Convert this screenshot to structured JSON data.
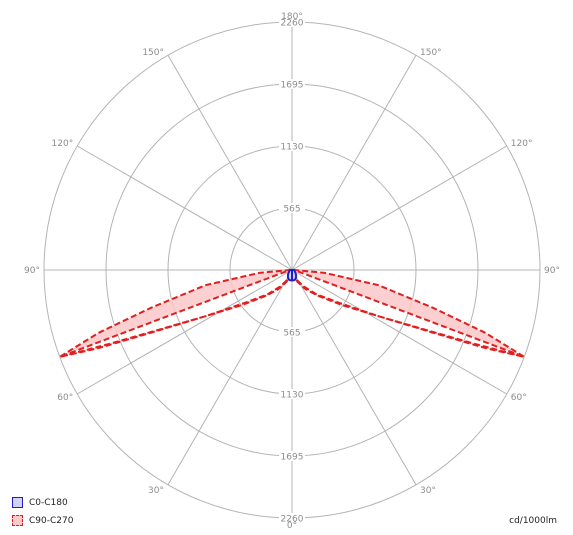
{
  "chart_data": {
    "type": "polar",
    "unit_label": "cd/1000lm",
    "radial_max": 2260,
    "radial_ticks": [
      565,
      1130,
      1695,
      2260
    ],
    "radial_tick_labels": [
      "565",
      "1130",
      "1695",
      "2260"
    ],
    "angle_labels": {
      "top": "180°",
      "bottom": "0°",
      "left_150": "150°",
      "right_150": "150°",
      "left_120": "120°",
      "right_120": "120°",
      "left_90": "90°",
      "right_90": "90°",
      "left_60": "60°",
      "right_60": "60°",
      "left_30": "30°",
      "right_30": "30°"
    },
    "series": [
      {
        "name": "C0-C180",
        "color": "#1f1fc8",
        "fill": "#d2d2f5",
        "dash": false,
        "outer": [
          [
            0,
            95
          ],
          [
            5,
            95
          ],
          [
            10,
            95
          ],
          [
            20,
            90
          ],
          [
            30,
            75
          ],
          [
            40,
            56
          ],
          [
            50,
            42
          ],
          [
            60,
            30
          ],
          [
            70,
            25
          ],
          [
            80,
            21
          ],
          [
            90,
            20
          ]
        ],
        "inner": []
      },
      {
        "name": "C90-C270",
        "color": "#e02020",
        "fill": "#fbc8c8",
        "dash": true,
        "outer": [
          [
            5,
            20
          ],
          [
            15,
            60
          ],
          [
            25,
            120
          ],
          [
            35,
            210
          ],
          [
            45,
            330
          ],
          [
            55,
            560
          ],
          [
            62,
            900
          ],
          [
            66,
            1400
          ],
          [
            68,
            1900
          ],
          [
            69.5,
            2260
          ],
          [
            72,
            1850
          ],
          [
            75,
            1330
          ],
          [
            80,
            800
          ],
          [
            85,
            300
          ],
          [
            90,
            20
          ]
        ],
        "inner": [
          [
            8,
            30
          ],
          [
            20,
            80
          ],
          [
            35,
            180
          ],
          [
            45,
            310
          ],
          [
            55,
            520
          ],
          [
            62,
            900
          ],
          [
            66,
            1350
          ],
          [
            68,
            1800
          ],
          [
            69.5,
            2260
          ]
        ]
      }
    ]
  }
}
